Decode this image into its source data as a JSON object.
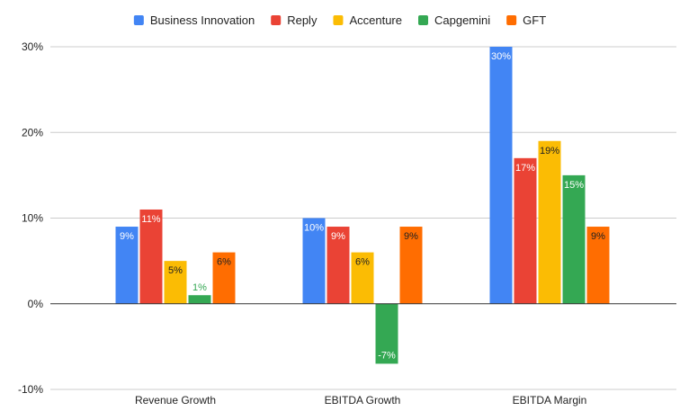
{
  "chart_data": {
    "type": "bar",
    "categories": [
      "Revenue Growth",
      "EBITDA Growth",
      "EBITDA Margin"
    ],
    "series": [
      {
        "name": "Business Innovation",
        "color": "#4285f4",
        "values": [
          9,
          10,
          30
        ],
        "labels": [
          "9%",
          "10%",
          "30%"
        ]
      },
      {
        "name": "Reply",
        "color": "#ea4335",
        "values": [
          11,
          9,
          17
        ],
        "labels": [
          "11%",
          "9%",
          "17%"
        ]
      },
      {
        "name": "Accenture",
        "color": "#fbbc04",
        "values": [
          5,
          6,
          19
        ],
        "labels": [
          "5%",
          "6%",
          "19%"
        ]
      },
      {
        "name": "Capgemini",
        "color": "#34a853",
        "values": [
          1,
          -7,
          15
        ],
        "labels": [
          "1%",
          "-7%",
          "15%"
        ]
      },
      {
        "name": "GFT",
        "color": "#ff6d01",
        "values": [
          6,
          9,
          9
        ],
        "labels": [
          "6%",
          "9%",
          "9%"
        ]
      }
    ],
    "y_ticks": [
      {
        "value": 30,
        "label": "30%"
      },
      {
        "value": 20,
        "label": "20%"
      },
      {
        "value": 10,
        "label": "10%"
      },
      {
        "value": 0,
        "label": "0%"
      },
      {
        "value": -10,
        "label": "-10%"
      }
    ],
    "ylim": [
      -10,
      30
    ],
    "grid": true,
    "legend_position": "top"
  }
}
